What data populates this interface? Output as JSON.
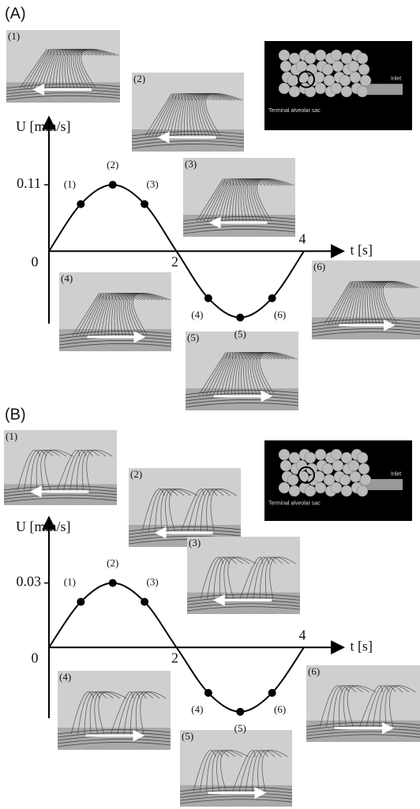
{
  "chart_data": [
    {
      "type": "line",
      "title": "(A)",
      "ylabel": "U [mm/s]",
      "xlabel": "t [s]",
      "x": [
        0,
        0.5,
        1,
        1.5,
        2,
        2.5,
        3,
        3.5,
        4
      ],
      "values": [
        0,
        0.078,
        0.11,
        0.078,
        0,
        -0.078,
        -0.11,
        -0.078,
        0
      ],
      "point_labels": [
        null,
        "(1)",
        "(2)",
        "(3)",
        null,
        "(4)",
        "(5)",
        "(6)",
        null
      ],
      "xlim": [
        0,
        4.6
      ],
      "ylim": [
        -0.12,
        0.22
      ],
      "xticks": [
        0,
        2,
        4
      ],
      "yticks": [
        0.11
      ],
      "color": "#000000",
      "image_labels": [
        "(1)",
        "(2)",
        "(3)",
        "(4)",
        "(5)",
        "(6)"
      ],
      "inset_labels": [
        "Terminal alveolar sac",
        "Inlet"
      ]
    },
    {
      "type": "line",
      "title": "(B)",
      "ylabel": "U [mm/s]",
      "xlabel": "t [s]",
      "x": [
        0,
        0.5,
        1,
        1.5,
        2,
        2.5,
        3,
        3.5,
        4
      ],
      "values": [
        0,
        0.0212,
        0.03,
        0.0212,
        0,
        -0.0212,
        -0.03,
        -0.0212,
        0
      ],
      "point_labels": [
        null,
        "(1)",
        "(2)",
        "(3)",
        null,
        "(4)",
        "(5)",
        "(6)",
        null
      ],
      "xlim": [
        0,
        4.6
      ],
      "ylim": [
        -0.033,
        0.06
      ],
      "xticks": [
        0,
        2,
        4
      ],
      "yticks": [
        0.03
      ],
      "color": "#000000",
      "image_labels": [
        "(1)",
        "(2)",
        "(3)",
        "(4)",
        "(5)",
        "(6)"
      ],
      "inset_labels": [
        "Terminal alveolar sac",
        "Inlet"
      ]
    }
  ]
}
